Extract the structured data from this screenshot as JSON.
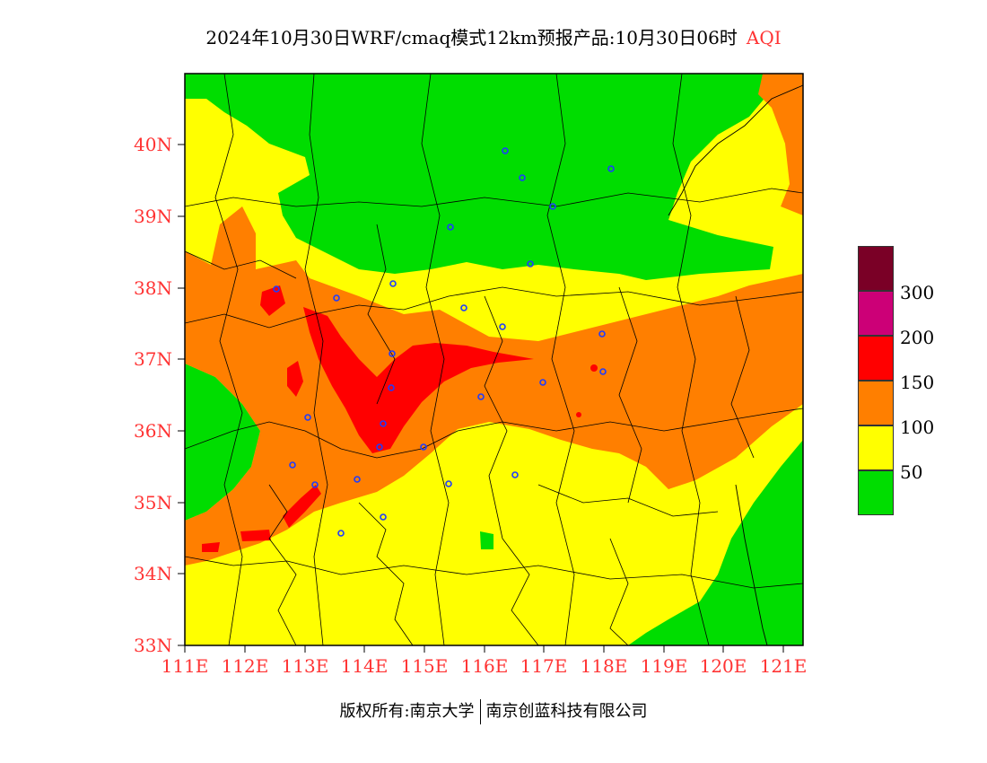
{
  "title": "2024年10月30日WRF/cmaq模式12km预报产品:10月30日06时",
  "product": "AQI",
  "y_ticks": [
    "40N",
    "39N",
    "38N",
    "37N",
    "36N",
    "35N",
    "34N",
    "33N"
  ],
  "x_ticks": [
    "111E",
    "112E",
    "113E",
    "114E",
    "115E",
    "116E",
    "117E",
    "118E",
    "119E",
    "120E",
    "121E"
  ],
  "legend": {
    "values": [
      "300",
      "200",
      "150",
      "100",
      "50"
    ],
    "colors": [
      "#7a0026",
      "#cc0077",
      "#ff0000",
      "#ff7f00",
      "#ffff00",
      "#00dd00"
    ]
  },
  "footer": {
    "copyright": "版权所有:南京大学",
    "company": "南京创蓝科技有限公司"
  },
  "colors": {
    "good": "#00dd00",
    "moderate": "#ffff00",
    "unhealthy_sensitive": "#ff7f00",
    "unhealthy": "#ff0000",
    "axis_label": "#ff3333",
    "station": "#1e3cff"
  }
}
